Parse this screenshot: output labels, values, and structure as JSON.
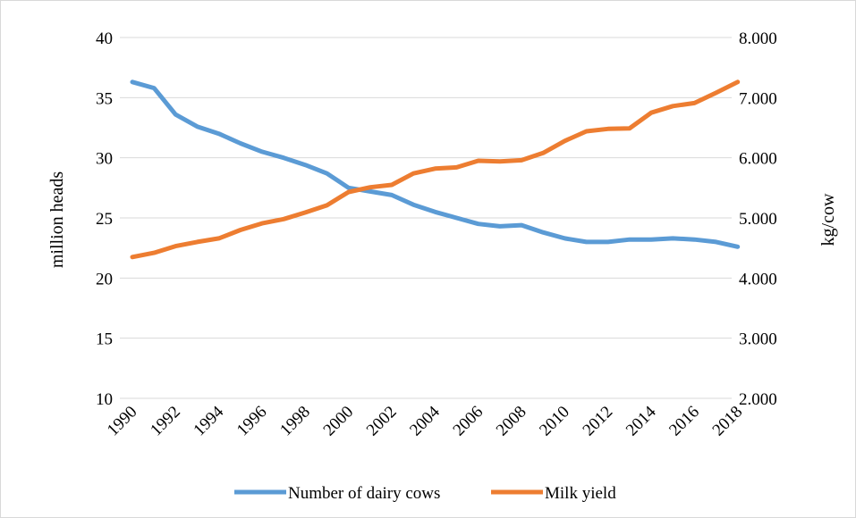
{
  "chart_data": {
    "type": "line",
    "title": "",
    "x": [
      "1990",
      "1991",
      "1992",
      "1993",
      "1994",
      "1995",
      "1996",
      "1997",
      "1998",
      "1999",
      "2000",
      "2001",
      "2002",
      "2003",
      "2004",
      "2005",
      "2006",
      "2007",
      "2008",
      "2009",
      "2010",
      "2011",
      "2012",
      "2013",
      "2014",
      "2015",
      "2016",
      "2017",
      "2018"
    ],
    "x_tick_labels": [
      "1990",
      "1992",
      "1994",
      "1996",
      "1998",
      "2000",
      "2002",
      "2004",
      "2006",
      "2008",
      "2010",
      "2012",
      "2014",
      "2016",
      "2018"
    ],
    "ylabel_left": "million heads",
    "ylabel_right": "kg/cow",
    "ylim_left": [
      10,
      40
    ],
    "ylim_right": [
      2000,
      8000
    ],
    "y_ticks_left": [
      "10",
      "15",
      "20",
      "25",
      "30",
      "35",
      "40"
    ],
    "y_ticks_right": [
      "2.000",
      "3.000",
      "4.000",
      "5.000",
      "6.000",
      "7.000",
      "8.000"
    ],
    "grid": true,
    "legend_position": "bottom",
    "series": [
      {
        "name": "Number of dairy cows",
        "axis": "left",
        "color": "#5b9bd5",
        "values": [
          36.3,
          35.8,
          33.6,
          32.6,
          32.0,
          31.2,
          30.5,
          30.0,
          29.4,
          28.7,
          27.5,
          27.2,
          26.9,
          26.1,
          25.5,
          25.0,
          24.5,
          24.3,
          24.4,
          23.8,
          23.3,
          23.0,
          23.0,
          23.2,
          23.2,
          23.3,
          23.2,
          23.0,
          22.6
        ]
      },
      {
        "name": "Milk yield",
        "axis": "right",
        "color": "#ed7d31",
        "values": [
          4350,
          4420,
          4530,
          4600,
          4660,
          4800,
          4910,
          4980,
          5090,
          5210,
          5430,
          5510,
          5550,
          5740,
          5820,
          5840,
          5950,
          5940,
          5960,
          6080,
          6280,
          6440,
          6480,
          6490,
          6750,
          6860,
          6910,
          7080,
          7260
        ]
      }
    ]
  }
}
